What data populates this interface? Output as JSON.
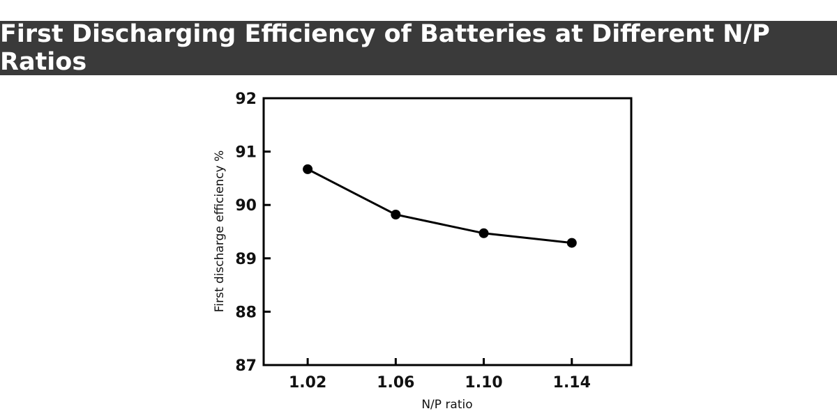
{
  "chart_data": {
    "type": "line",
    "title": "First Discharging Efficiency of Batteries at Different N/P Ratios",
    "xlabel": "N/P ratio",
    "ylabel": "First discharge efficiency %",
    "x": [
      1.02,
      1.06,
      1.1,
      1.14
    ],
    "x_tick_labels": [
      "1.02",
      "1.06",
      "1.10",
      "1.14"
    ],
    "series": [
      {
        "values": [
          90.67,
          89.82,
          89.47,
          89.29
        ]
      }
    ],
    "y_ticks": [
      87,
      88,
      89,
      90,
      91,
      92
    ],
    "y_tick_labels": [
      "87",
      "88",
      "89",
      "90",
      "91",
      "92"
    ],
    "xlim": [
      1.0,
      1.167
    ],
    "ylim": [
      87,
      92
    ],
    "grid": false,
    "colors": {
      "line": "#000000",
      "banner": "#3a3a3a",
      "banner_text": "#ffffff"
    }
  }
}
